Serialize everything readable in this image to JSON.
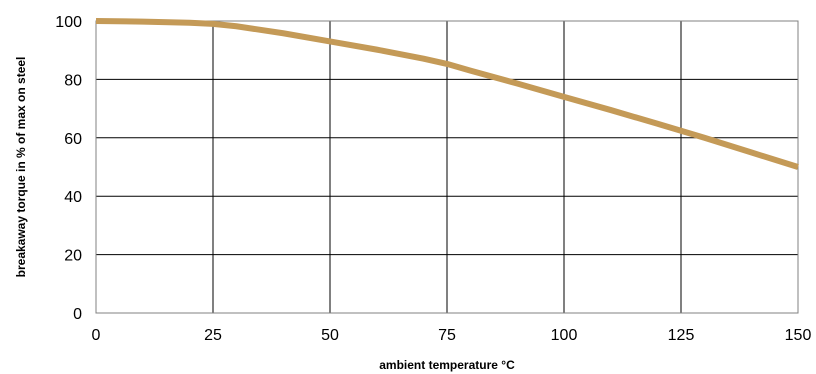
{
  "chart_data": {
    "type": "line",
    "title": "",
    "xlabel": "ambient temperature °C",
    "ylabel": "breakaway torque in % of max on steel",
    "xlim": [
      0,
      150
    ],
    "ylim": [
      0,
      100
    ],
    "x_ticks": [
      0,
      25,
      50,
      75,
      100,
      125,
      150
    ],
    "y_ticks": [
      0,
      20,
      40,
      60,
      80,
      100
    ],
    "grid": true,
    "legend": "none",
    "series": [
      {
        "color": "#C49A57",
        "x": [
          0,
          10,
          20,
          25,
          30,
          40,
          50,
          60,
          70,
          75,
          80,
          90,
          100,
          110,
          120,
          125,
          130,
          140,
          150
        ],
        "y": [
          100,
          99.8,
          99.4,
          99,
          98.2,
          95.8,
          93,
          90.2,
          87.1,
          85.3,
          83,
          78.6,
          74,
          69.5,
          64.8,
          62.4,
          60,
          55,
          50
        ]
      }
    ]
  }
}
